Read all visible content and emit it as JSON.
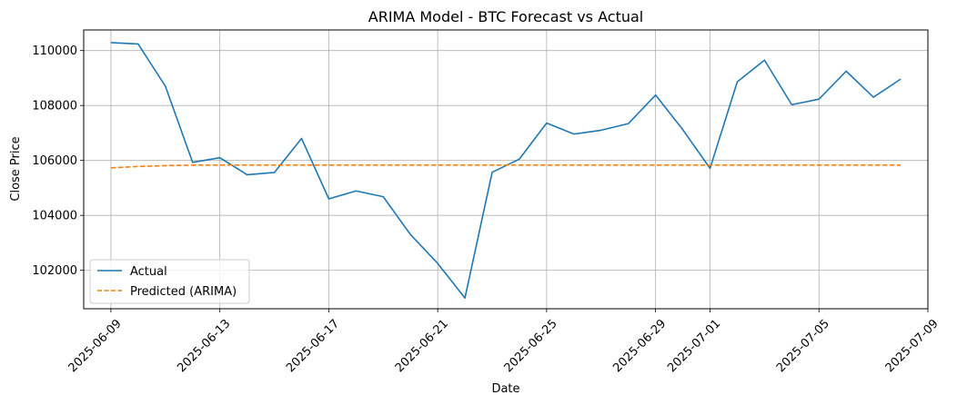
{
  "chart_data": {
    "type": "line",
    "title": "ARIMA Model - BTC Forecast vs Actual",
    "xlabel": "Date",
    "ylabel": "Close Price",
    "x_tick_labels": [
      "2025-06-09",
      "2025-06-13",
      "2025-06-17",
      "2025-06-21",
      "2025-06-25",
      "2025-06-29",
      "2025-07-01",
      "2025-07-05",
      "2025-07-09"
    ],
    "y_tick_labels": [
      "102000",
      "104000",
      "106000",
      "108000",
      "110000"
    ],
    "xlim": [
      "2025-06-08",
      "2025-07-09"
    ],
    "ylim": [
      100600,
      110750
    ],
    "grid": true,
    "legend_position": "lower-left",
    "x": [
      "2025-06-09",
      "2025-06-10",
      "2025-06-11",
      "2025-06-12",
      "2025-06-13",
      "2025-06-14",
      "2025-06-15",
      "2025-06-16",
      "2025-06-17",
      "2025-06-18",
      "2025-06-19",
      "2025-06-20",
      "2025-06-21",
      "2025-06-22",
      "2025-06-23",
      "2025-06-24",
      "2025-06-25",
      "2025-06-26",
      "2025-06-27",
      "2025-06-28",
      "2025-06-29",
      "2025-06-30",
      "2025-07-01",
      "2025-07-02",
      "2025-07-03",
      "2025-07-04",
      "2025-07-05",
      "2025-07-06",
      "2025-07-07",
      "2025-07-08"
    ],
    "series": [
      {
        "name": "Actual",
        "color": "#1f77b4",
        "style": "solid",
        "values": [
          110290,
          110240,
          108700,
          105930,
          106100,
          105480,
          105560,
          106800,
          104600,
          104890,
          104680,
          103300,
          102250,
          100990,
          105570,
          106050,
          107360,
          106960,
          107100,
          107340,
          108380,
          107120,
          105710,
          108860,
          109650,
          108030,
          108230,
          109250,
          108300,
          108960
        ]
      },
      {
        "name": "Predicted (ARIMA)",
        "color": "#ff7f0e",
        "style": "dashed",
        "values": [
          105730,
          105780,
          105810,
          105830,
          105830,
          105830,
          105830,
          105830,
          105830,
          105830,
          105830,
          105830,
          105830,
          105830,
          105830,
          105830,
          105830,
          105830,
          105830,
          105830,
          105830,
          105830,
          105830,
          105830,
          105830,
          105830,
          105830,
          105830,
          105830,
          105830
        ]
      }
    ]
  }
}
